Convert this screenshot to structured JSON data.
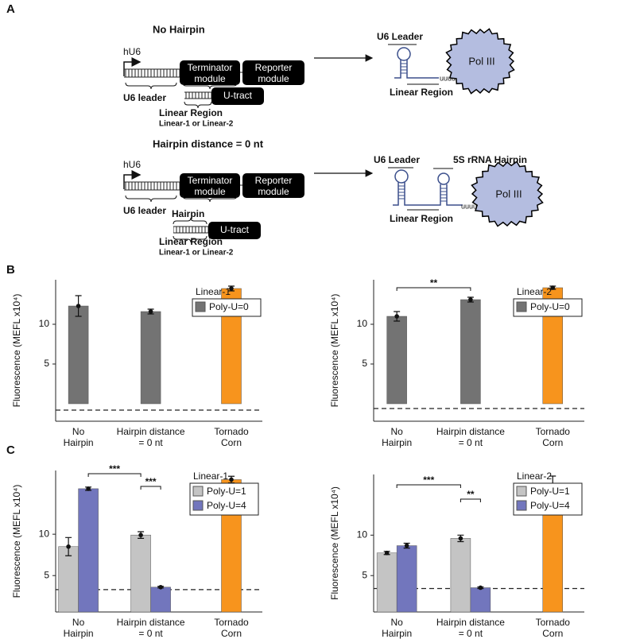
{
  "panel_labels": [
    "A",
    "B",
    "C"
  ],
  "panel_a": {
    "no_hairpin": {
      "title": "No Hairpin",
      "promoter": "hU6",
      "terminator": "Terminator module",
      "reporter": "Reporter module",
      "leader": "U6 leader",
      "u_tract": "U-tract",
      "linear_region": "Linear Region",
      "linear_options": "Linear-1 or Linear-2",
      "rna_leader": "U6 Leader",
      "rna_linear": "Linear Region",
      "rna_tail": "uuuu",
      "polymerase": "Pol III"
    },
    "hairpin": {
      "title": "Hairpin distance = 0 nt",
      "promoter": "hU6",
      "terminator": "Terminator module",
      "reporter": "Reporter module",
      "leader": "U6 leader",
      "hairpin": "Hairpin",
      "u_tract": "U-tract",
      "linear_region": "Linear Region",
      "linear_options": "Linear-1 or Linear-2",
      "rna_leader": "U6 Leader",
      "rna_hairpin": "5S rRNA Hairpin",
      "rna_linear": "Linear Region",
      "rna_tail": "uuuuu",
      "polymerase": "Pol III"
    }
  },
  "chart_data": [
    {
      "type": "bar",
      "y_label": "Fluorescence (MEFL x10⁴)",
      "categories": [
        "No Hairpin",
        "Hairpin distance = 0 nt",
        "Tornado Corn"
      ],
      "legend_title": "Linear-1",
      "series": [
        {
          "name": "Poly-U=0",
          "color": "#737373",
          "values": [
            12.3,
            11.6,
            null
          ],
          "errors": [
            1.3,
            0.3,
            null
          ]
        }
      ],
      "reference_bar": {
        "color": "#f7941d",
        "values": [
          null,
          null,
          14.5
        ],
        "errors": [
          null,
          null,
          0.3
        ]
      },
      "background_level": -0.8,
      "ylim": [
        -2.2,
        15.6
      ],
      "yticks": [
        5,
        10
      ],
      "annotations": []
    },
    {
      "type": "bar",
      "y_label": "Fluorescence (MEFL x10⁴)",
      "categories": [
        "No Hairpin",
        "Hairpin distance = 0 nt",
        "Tornado Corn"
      ],
      "legend_title": "Linear-2",
      "series": [
        {
          "name": "Poly-U=0",
          "color": "#737373",
          "values": [
            11.0,
            13.1,
            null
          ],
          "errors": [
            0.6,
            0.3,
            null
          ]
        }
      ],
      "reference_bar": {
        "color": "#f7941d",
        "values": [
          null,
          null,
          14.6
        ],
        "errors": [
          null,
          null,
          0.2
        ]
      },
      "background_level": -0.6,
      "ylim": [
        -2.2,
        15.6
      ],
      "yticks": [
        5,
        10
      ],
      "annotations": [
        "**"
      ]
    },
    {
      "type": "bar",
      "y_label": "Fluorescence (MEFL x10⁴)",
      "categories": [
        "No Hairpin",
        "Hairpin distance = 0 nt",
        "Tornado Corn"
      ],
      "legend_title": "Linear-1",
      "series": [
        {
          "name": "Poly-U=1",
          "color": "#c4c4c4",
          "values": [
            8.5,
            9.9,
            null
          ],
          "errors": [
            1.1,
            0.4,
            null
          ]
        },
        {
          "name": "Poly-U=4",
          "color": "#7276bd",
          "values": [
            15.5,
            3.6,
            null
          ],
          "errors": [
            0.2,
            0.1,
            null
          ]
        }
      ],
      "reference_bar": {
        "color": "#f7941d",
        "values": [
          null,
          null,
          16.6
        ],
        "errors": [
          null,
          null,
          0.4
        ]
      },
      "background_level": 3.3,
      "ylim": [
        0.6,
        17.7
      ],
      "yticks": [
        5,
        10
      ],
      "annotations": [
        "***",
        "***"
      ]
    },
    {
      "type": "bar",
      "y_label": "Fluorescence (MEFL x10⁴)",
      "categories": [
        "No Hairpin",
        "Hairpin distance = 0 nt",
        "Tornado Corn"
      ],
      "legend_title": "Linear-2",
      "series": [
        {
          "name": "Poly-U=1",
          "color": "#c4c4c4",
          "values": [
            7.8,
            9.6,
            null
          ],
          "errors": [
            0.2,
            0.4,
            null
          ]
        },
        {
          "name": "Poly-U=4",
          "color": "#7276bd",
          "values": [
            8.7,
            3.5,
            null
          ],
          "errors": [
            0.3,
            0.1,
            null
          ]
        }
      ],
      "reference_bar": {
        "color": "#f7941d",
        "values": [
          null,
          null,
          15.8
        ],
        "errors": [
          null,
          null,
          1.5
        ]
      },
      "background_level": 3.4,
      "ylim": [
        0.5,
        17.5
      ],
      "yticks": [
        5,
        10
      ],
      "annotations": [
        "***",
        "**"
      ]
    }
  ]
}
